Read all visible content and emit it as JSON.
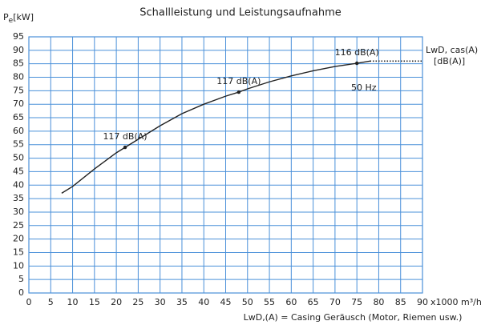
{
  "chart_data": {
    "type": "line",
    "title": "Schallleistung und Leistungsaufnahme",
    "ylabel": "P",
    "ylabel_sub": "e",
    "ylabel_unit": "[kW]",
    "xlabel": "x1000 m³/h",
    "xlim": [
      0,
      90
    ],
    "ylim": [
      0,
      95
    ],
    "xticks": [
      0,
      5,
      10,
      15,
      20,
      25,
      30,
      35,
      40,
      45,
      50,
      55,
      60,
      65,
      70,
      75,
      80,
      85,
      90
    ],
    "yticks": [
      0,
      5,
      10,
      15,
      20,
      25,
      30,
      35,
      40,
      45,
      50,
      55,
      60,
      65,
      70,
      75,
      80,
      85,
      90,
      95
    ],
    "grid": true,
    "grid_color": "#4a90d9",
    "series": [
      {
        "color": "#222222",
        "style": "solid",
        "x": [
          7.5,
          10,
          15,
          20,
          22,
          25,
          30,
          35,
          40,
          45,
          48,
          50,
          55,
          60,
          65,
          70,
          75,
          78
        ],
        "values": [
          37,
          39.5,
          46,
          52,
          54,
          57,
          62,
          66.5,
          70,
          73,
          74.5,
          75.7,
          78.3,
          80.5,
          82.4,
          84,
          85.2,
          86
        ]
      },
      {
        "color": "#222222",
        "style": "dotted",
        "x": [
          78,
          90
        ],
        "values": [
          86,
          86
        ]
      }
    ],
    "markers": [
      {
        "x": 22,
        "y": 54,
        "label": "117 dB(A)"
      },
      {
        "x": 48,
        "y": 74.5,
        "label": "117 dB(A)"
      },
      {
        "x": 75,
        "y": 85.2,
        "label": "116 dB(A)"
      }
    ],
    "annotation_freq": "50 Hz",
    "annotation_right_1": "LwD, cas(A)",
    "annotation_right_2": "[dB(A)]",
    "footnote": "LwD,(A) = Casing Geräusch (Motor, Riemen usw.)"
  }
}
